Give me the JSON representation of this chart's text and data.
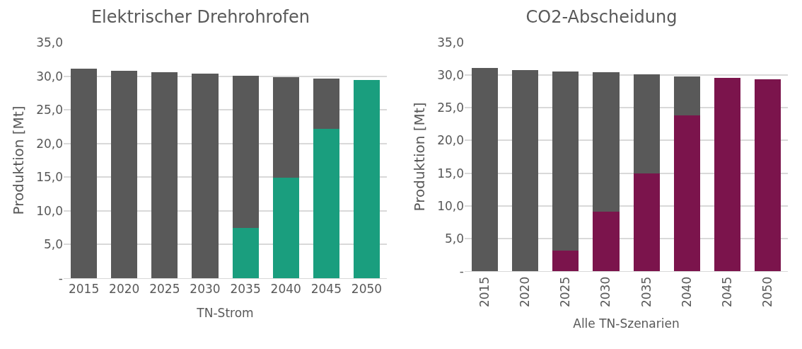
{
  "chart_data": [
    {
      "type": "bar",
      "title": "Elektrischer Drehrohrofen",
      "ylabel": "Produktion [Mt]",
      "xlabel": "TN-Strom",
      "categories": [
        "2015",
        "2020",
        "2025",
        "2030",
        "2035",
        "2040",
        "2045",
        "2050"
      ],
      "stacked": true,
      "grid": "y",
      "ylim": [
        0,
        35
      ],
      "yticks": [
        {
          "value": 0,
          "label": "-"
        },
        {
          "value": 5,
          "label": "5,0"
        },
        {
          "value": 10,
          "label": "10,0"
        },
        {
          "value": 15,
          "label": "15,0"
        },
        {
          "value": 20,
          "label": "20,0"
        },
        {
          "value": 25,
          "label": "25,0"
        },
        {
          "value": 30,
          "label": "30,0"
        },
        {
          "value": 35,
          "label": "35,0"
        }
      ],
      "series": [
        {
          "color": "#1a9e7e",
          "values": [
            0,
            0,
            0,
            0,
            7.5,
            14.9,
            22.2,
            29.4
          ]
        },
        {
          "color": "#595959",
          "values": [
            31.1,
            30.8,
            30.6,
            30.4,
            22.6,
            14.9,
            7.4,
            0
          ]
        }
      ]
    },
    {
      "type": "bar",
      "title": "CO2-Abscheidung",
      "ylabel": "Produktion [Mt]",
      "xlabel": "Alle TN-Szenarien",
      "categories": [
        "2015",
        "2020",
        "2025",
        "2030",
        "2035",
        "2040",
        "2045",
        "2050"
      ],
      "stacked": true,
      "grid": "y",
      "ylim": [
        0,
        35
      ],
      "yticks": [
        {
          "value": 0,
          "label": "-"
        },
        {
          "value": 5,
          "label": "5,0"
        },
        {
          "value": 10,
          "label": "10,0"
        },
        {
          "value": 15,
          "label": "15,0"
        },
        {
          "value": 20,
          "label": "20,0"
        },
        {
          "value": 25,
          "label": "25,0"
        },
        {
          "value": 30,
          "label": "30,0"
        },
        {
          "value": 35,
          "label": "35,0"
        }
      ],
      "series": [
        {
          "color": "#7b144c",
          "values": [
            0,
            0,
            3.1,
            9.1,
            15.0,
            23.8,
            29.6,
            29.4
          ]
        },
        {
          "color": "#595959",
          "values": [
            31.1,
            30.8,
            27.5,
            21.3,
            15.1,
            6.0,
            0,
            0
          ]
        }
      ]
    }
  ]
}
